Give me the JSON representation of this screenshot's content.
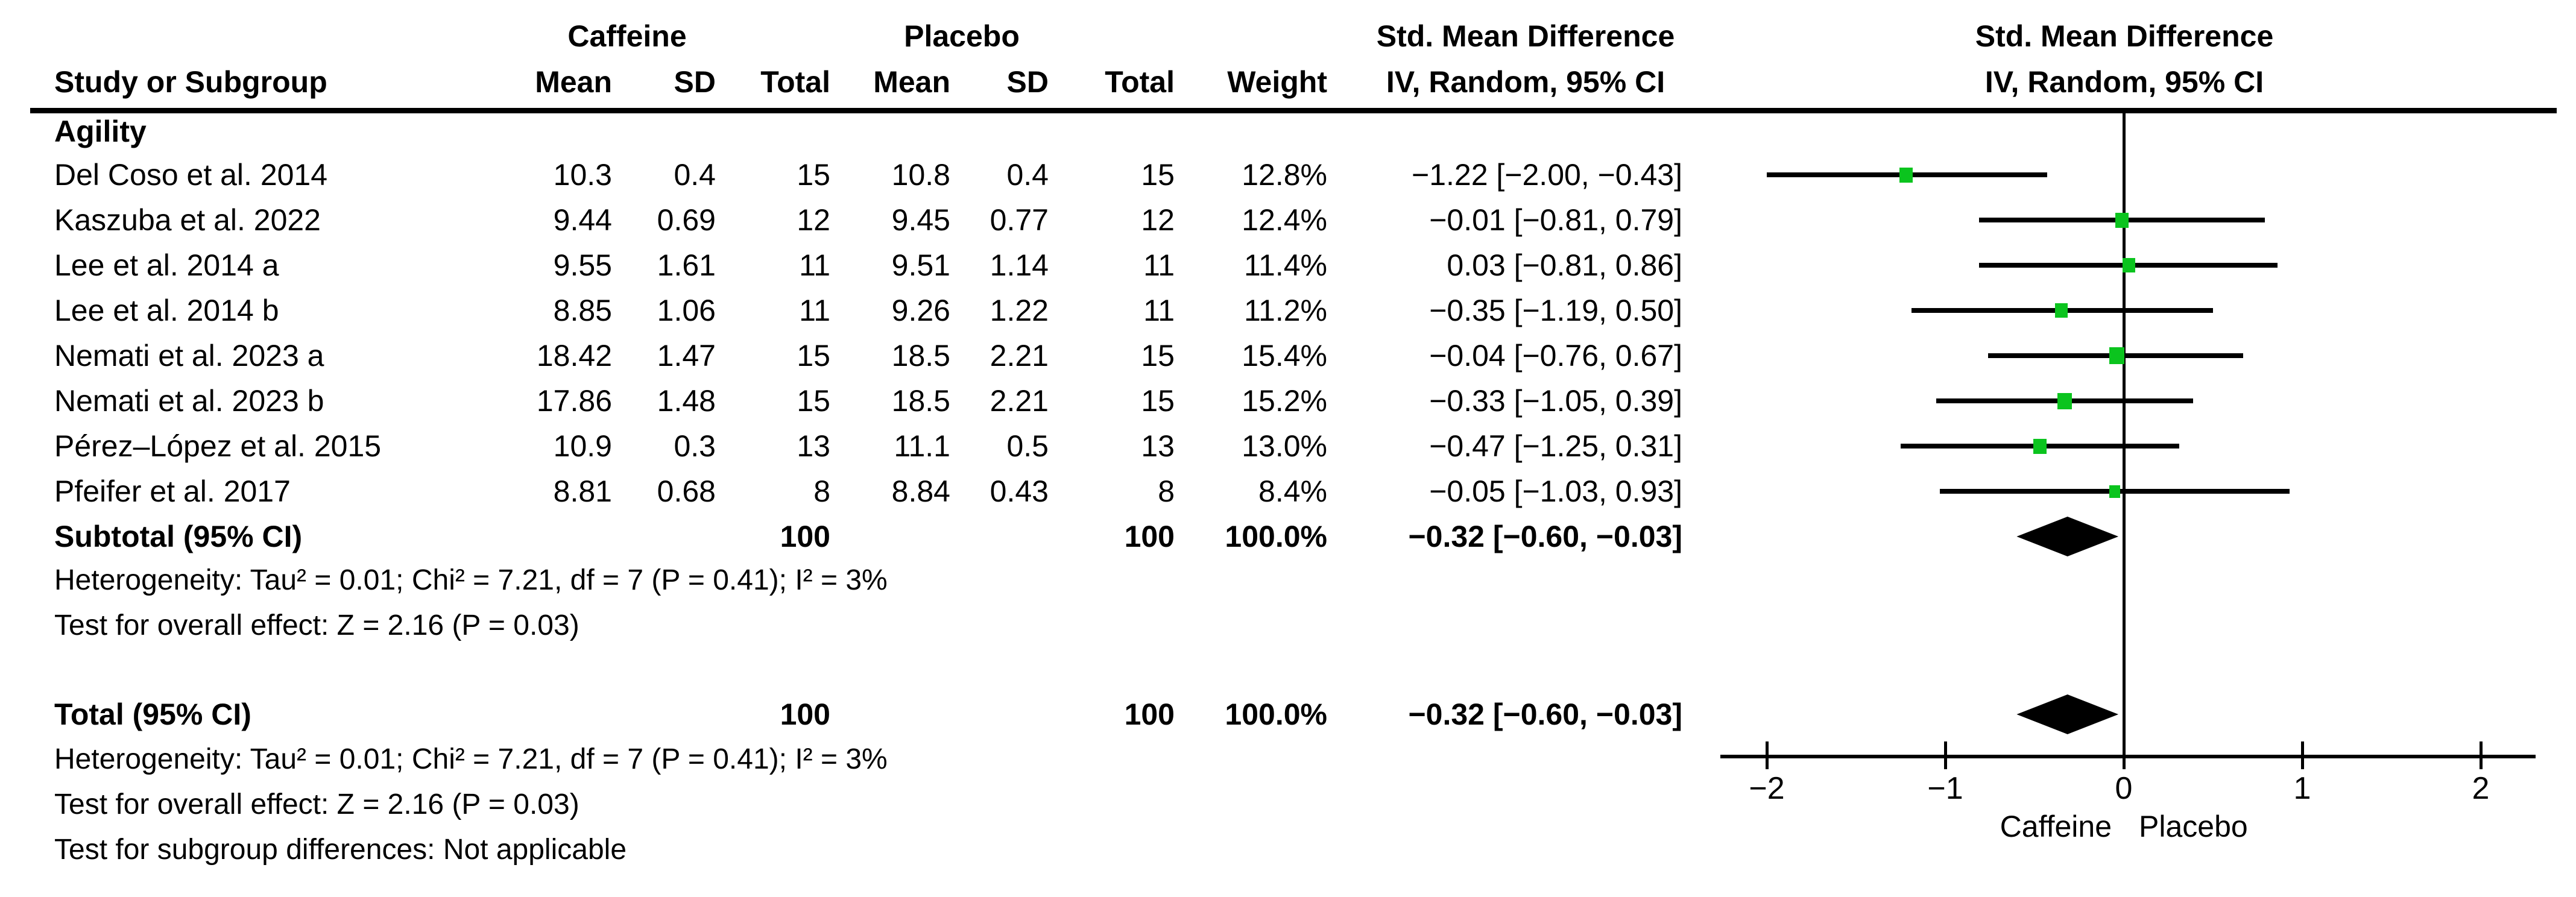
{
  "header": {
    "caffeine": "Caffeine",
    "placebo": "Placebo",
    "smd": "Std. Mean Difference",
    "study": "Study or Subgroup",
    "mean": "Mean",
    "sd": "SD",
    "total": "Total",
    "weight": "Weight",
    "method": "IV, Random, 95% CI"
  },
  "colors": {
    "marker_green": "#0BC41E",
    "text": "#000000",
    "background": "#FFFFFF"
  },
  "chart_data": {
    "type": "forest",
    "subgroup_label": "Agility",
    "studies": [
      {
        "name": "Del Coso et al. 2014",
        "caffeine_mean": "10.3",
        "caffeine_sd": "0.4",
        "caffeine_total": "15",
        "placebo_mean": "10.8",
        "placebo_sd": "0.4",
        "placebo_total": "15",
        "weight": "12.8%",
        "weight_val": 12.8,
        "smd": -1.22,
        "ci_low": -2.0,
        "ci_high": -0.43,
        "ci_text": "−1.22 [−2.00, −0.43]"
      },
      {
        "name": "Kaszuba et al. 2022",
        "caffeine_mean": "9.44",
        "caffeine_sd": "0.69",
        "caffeine_total": "12",
        "placebo_mean": "9.45",
        "placebo_sd": "0.77",
        "placebo_total": "12",
        "weight": "12.4%",
        "weight_val": 12.4,
        "smd": -0.01,
        "ci_low": -0.81,
        "ci_high": 0.79,
        "ci_text": "−0.01 [−0.81, 0.79]"
      },
      {
        "name": "Lee et al. 2014 a",
        "caffeine_mean": "9.55",
        "caffeine_sd": "1.61",
        "caffeine_total": "11",
        "placebo_mean": "9.51",
        "placebo_sd": "1.14",
        "placebo_total": "11",
        "weight": "11.4%",
        "weight_val": 11.4,
        "smd": 0.03,
        "ci_low": -0.81,
        "ci_high": 0.86,
        "ci_text": "0.03 [−0.81, 0.86]"
      },
      {
        "name": "Lee et al. 2014 b",
        "caffeine_mean": "8.85",
        "caffeine_sd": "1.06",
        "caffeine_total": "11",
        "placebo_mean": "9.26",
        "placebo_sd": "1.22",
        "placebo_total": "11",
        "weight": "11.2%",
        "weight_val": 11.2,
        "smd": -0.35,
        "ci_low": -1.19,
        "ci_high": 0.5,
        "ci_text": "−0.35 [−1.19, 0.50]"
      },
      {
        "name": "Nemati et al. 2023 a",
        "caffeine_mean": "18.42",
        "caffeine_sd": "1.47",
        "caffeine_total": "15",
        "placebo_mean": "18.5",
        "placebo_sd": "2.21",
        "placebo_total": "15",
        "weight": "15.4%",
        "weight_val": 15.4,
        "smd": -0.04,
        "ci_low": -0.76,
        "ci_high": 0.67,
        "ci_text": "−0.04 [−0.76, 0.67]"
      },
      {
        "name": "Nemati et al. 2023 b",
        "caffeine_mean": "17.86",
        "caffeine_sd": "1.48",
        "caffeine_total": "15",
        "placebo_mean": "18.5",
        "placebo_sd": "2.21",
        "placebo_total": "15",
        "weight": "15.2%",
        "weight_val": 15.2,
        "smd": -0.33,
        "ci_low": -1.05,
        "ci_high": 0.39,
        "ci_text": "−0.33 [−1.05, 0.39]"
      },
      {
        "name": "Pérez–López et al. 2015",
        "caffeine_mean": "10.9",
        "caffeine_sd": "0.3",
        "caffeine_total": "13",
        "placebo_mean": "11.1",
        "placebo_sd": "0.5",
        "placebo_total": "13",
        "weight": "13.0%",
        "weight_val": 13.0,
        "smd": -0.47,
        "ci_low": -1.25,
        "ci_high": 0.31,
        "ci_text": "−0.47 [−1.25, 0.31]"
      },
      {
        "name": "Pfeifer et al. 2017",
        "caffeine_mean": "8.81",
        "caffeine_sd": "0.68",
        "caffeine_total": "8",
        "placebo_mean": "8.84",
        "placebo_sd": "0.43",
        "placebo_total": "8",
        "weight": "8.4%",
        "weight_val": 8.4,
        "smd": -0.05,
        "ci_low": -1.03,
        "ci_high": 0.93,
        "ci_text": "−0.05 [−1.03, 0.93]"
      }
    ],
    "subtotal": {
      "label": "Subtotal (95% CI)",
      "caffeine_total": "100",
      "placebo_total": "100",
      "weight": "100.0%",
      "smd": -0.32,
      "ci_low": -0.6,
      "ci_high": -0.03,
      "ci_text": "−0.32 [−0.60, −0.03]"
    },
    "total": {
      "label": "Total (95% CI)",
      "caffeine_total": "100",
      "placebo_total": "100",
      "weight": "100.0%",
      "smd": -0.32,
      "ci_low": -0.6,
      "ci_high": -0.03,
      "ci_text": "−0.32 [−0.60, −0.03]"
    },
    "stats": {
      "heterogeneity_subgroup": "Heterogeneity: Tau² = 0.01; Chi² = 7.21, df = 7 (P = 0.41); I² = 3%",
      "overall_effect_subgroup": "Test for overall effect: Z = 2.16 (P = 0.03)",
      "heterogeneity_total": "Heterogeneity: Tau² = 0.01; Chi² = 7.21, df = 7 (P = 0.41); I² = 3%",
      "overall_effect_total": "Test for overall effect: Z = 2.16 (P = 0.03)",
      "subgroup_differences": "Test for subgroup differences: Not applicable"
    },
    "axis": {
      "tick_labels": [
        "−2",
        "−1",
        "0",
        "1",
        "2"
      ],
      "tick_values": [
        -2,
        -1,
        0,
        1,
        2
      ],
      "xlim": [
        -2.26,
        2.31
      ],
      "left_label": "Caffeine",
      "right_label": "Placebo"
    }
  }
}
